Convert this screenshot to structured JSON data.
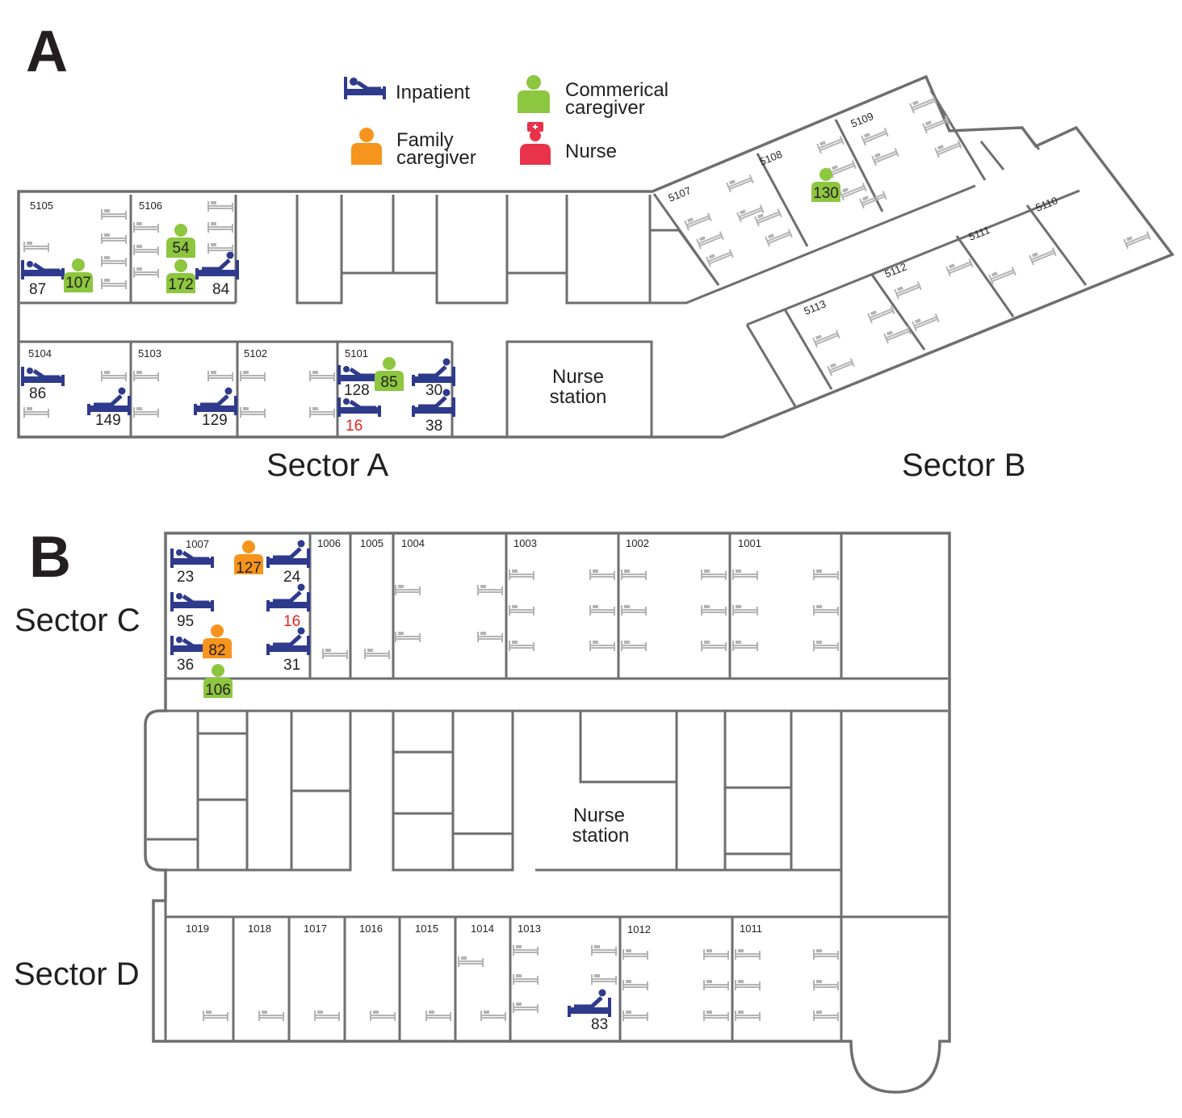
{
  "panels": {
    "a": "A",
    "b": "B"
  },
  "legend": {
    "inpatient": "Inpatient",
    "commercial_line1": "Commerical",
    "commercial_line2": "caregiver",
    "family_line1": "Family",
    "family_line2": "caregiver",
    "nurse": "Nurse"
  },
  "colors": {
    "inpatient": "#2e3a8c",
    "commercial": "#8dc63f",
    "family": "#f7941d",
    "nurse": "#e8334a",
    "empty_bed": "#b3b3b3",
    "wall": "#6d6e70",
    "red_count": "#e52421"
  },
  "sectors": {
    "a": "Sector A",
    "b": "Sector B",
    "c": "Sector C",
    "d": "Sector D"
  },
  "nurse_station": {
    "line1": "Nurse",
    "line2": "station"
  },
  "rooms": {
    "r5105": "5105",
    "r5106": "5106",
    "r5104": "5104",
    "r5103": "5103",
    "r5102": "5102",
    "r5101": "5101",
    "r5107": "5107",
    "r5108": "5108",
    "r5109": "5109",
    "r5110": "5110",
    "r5111": "5111",
    "r5112": "5112",
    "r5113": "5113",
    "r1007": "1007",
    "r1006": "1006",
    "r1005": "1005",
    "r1004": "1004",
    "r1003": "1003",
    "r1002": "1002",
    "r1001": "1001",
    "r1019": "1019",
    "r1018": "1018",
    "r1017": "1017",
    "r1016": "1016",
    "r1015": "1015",
    "r1014": "1014",
    "r1013": "1013",
    "r1012": "1012",
    "r1011": "1011"
  },
  "counts": {
    "c87": "87",
    "c107": "107",
    "c54": "54",
    "c172": "172",
    "c84": "84",
    "c130": "130",
    "c86": "86",
    "c149": "149",
    "c129": "129",
    "c128": "128",
    "c85": "85",
    "c30": "30",
    "c16a": "16",
    "c38": "38",
    "c23": "23",
    "c127": "127",
    "c24": "24",
    "c95": "95",
    "c16c": "16",
    "c36": "36",
    "c82": "82",
    "c31": "31",
    "c106": "106",
    "c83": "83"
  }
}
